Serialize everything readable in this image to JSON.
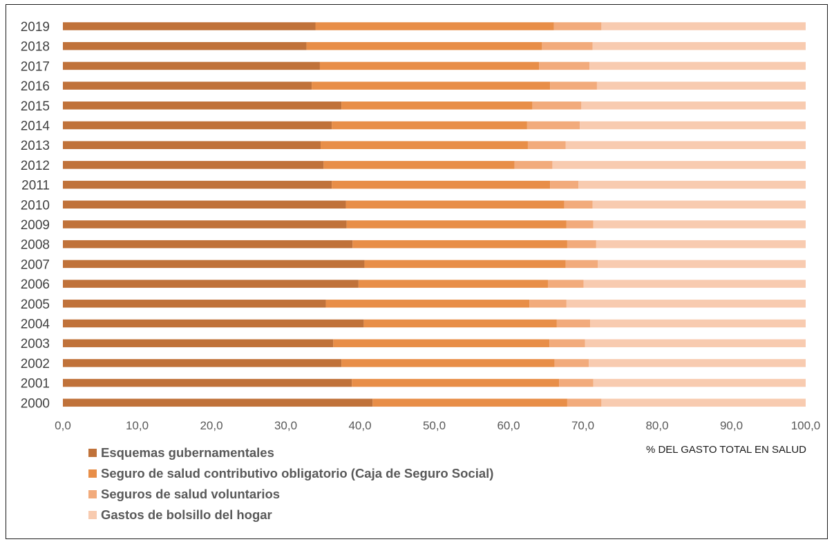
{
  "chart_data": {
    "type": "bar",
    "orientation": "horizontal",
    "stacked": true,
    "categories": [
      "2019",
      "2018",
      "2017",
      "2016",
      "2015",
      "2014",
      "2013",
      "2012",
      "2011",
      "2010",
      "2009",
      "2008",
      "2007",
      "2006",
      "2005",
      "2004",
      "2003",
      "2002",
      "2001",
      "2000"
    ],
    "series": [
      {
        "name": "Esquemas gubernamentales",
        "color": "#C0723A",
        "values": [
          34.0,
          32.8,
          34.6,
          33.5,
          37.5,
          36.2,
          34.7,
          35.1,
          36.2,
          38.1,
          38.2,
          39.0,
          40.6,
          39.8,
          35.4,
          40.5,
          36.4,
          37.5,
          38.9,
          41.7
        ]
      },
      {
        "name": "Seguro de salud contributivo obligatorio (Caja de Seguro Social)",
        "color": "#E88E48",
        "values": [
          32.1,
          31.7,
          29.5,
          32.1,
          25.7,
          26.3,
          27.9,
          25.7,
          29.4,
          29.4,
          29.6,
          28.9,
          27.1,
          25.5,
          27.4,
          26.0,
          29.1,
          28.7,
          27.9,
          26.2
        ]
      },
      {
        "name": "Seguros de salud voluntarios",
        "color": "#F2AB7C",
        "values": [
          6.4,
          6.8,
          6.8,
          6.3,
          6.6,
          7.1,
          5.1,
          5.1,
          3.8,
          3.8,
          3.6,
          3.9,
          4.3,
          4.8,
          5.0,
          4.5,
          4.8,
          4.6,
          4.6,
          4.6
        ]
      },
      {
        "name": "Gastos de bolsillo del hogar",
        "color": "#F8CBB0",
        "values": [
          27.5,
          28.7,
          29.1,
          28.1,
          30.2,
          30.4,
          32.3,
          34.1,
          30.6,
          28.7,
          28.6,
          28.2,
          28.0,
          29.9,
          32.2,
          29.0,
          29.7,
          29.2,
          28.6,
          27.5
        ]
      }
    ],
    "xlim": [
      0,
      100
    ],
    "xticks": [
      "0,0",
      "10,0",
      "20,0",
      "30,0",
      "40,0",
      "50,0",
      "60,0",
      "70,0",
      "80,0",
      "90,0",
      "100,0"
    ],
    "xlabel": "% DEL GASTO TOTAL EN SALUD",
    "grid": false,
    "legend_position": "bottom-left"
  }
}
